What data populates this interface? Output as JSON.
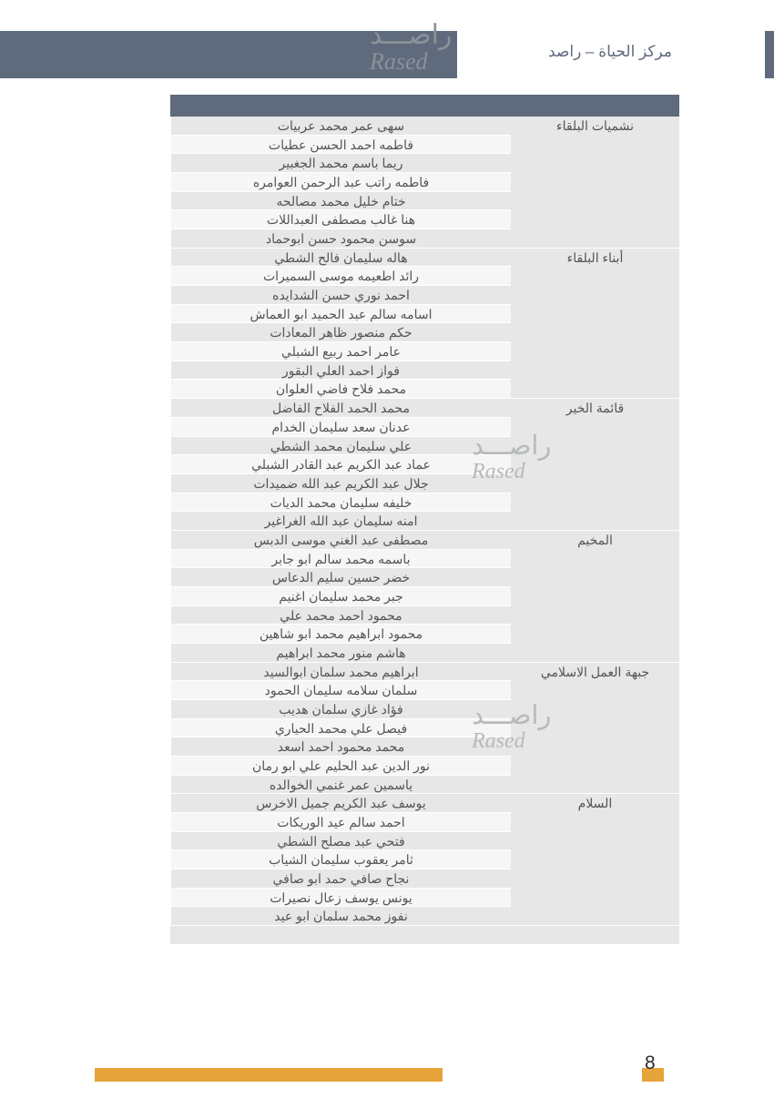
{
  "header": {
    "title": "مركز الحياة – راصد"
  },
  "logo": {
    "ar": "راصـــد",
    "en": "Rased"
  },
  "footer": {
    "page": "8"
  },
  "colors": {
    "header_bar": "#5f6a7d",
    "row_alt": "#e7e7e7",
    "row_norm": "#f6f6f6",
    "accent": "#e6a43a",
    "text": "#555555",
    "logo": "#8b9197",
    "watermark": "#b7babd"
  },
  "groups": [
    {
      "label": "نشميات البلقاء",
      "names": [
        "سهى عمر محمد عربيات",
        "فاطمه احمد الحسن عطيات",
        "ريما باسم محمد الجغبير",
        "فاطمه راتب عبد الرحمن العوامره",
        "ختام خليل محمد مصالحه",
        "هنا غالب مصطفى العبداللات",
        "سوسن محمود حسن ابوحماد"
      ]
    },
    {
      "label": "أبناء البلقاء",
      "names": [
        "هاله سليمان فالح الشطي",
        "رائد اطعيمه موسى السميرات",
        "احمد نوري حسن الشدايده",
        "اسامه سالم عبد الحميد ابو العماش",
        "حكم منصور ظاهر المعادات",
        "عامر احمد ربيع الشبلي",
        "فواز احمد العلي البقور",
        "محمد فلاح فاضي العلوان"
      ]
    },
    {
      "label": "قائمة الخير",
      "names": [
        "محمد الحمد الفلاح الفاضل",
        "عدنان سعد سليمان الخدام",
        "علي سليمان محمد الشطي",
        "عماد عبد الكريم عبد القادر الشبلي",
        "جلال عبد الكريم عبد الله ضميدات",
        "خليفه سليمان محمد الديات",
        "امنه سليمان عبد الله الغراغير"
      ]
    },
    {
      "label": "المخيم",
      "names": [
        "مصطفى عبد الغني موسى الدبس",
        "باسمه محمد سالم ابو جابر",
        "خضر حسين سليم الدعاس",
        "جبر محمد سليمان اغنيم",
        "محمود احمد محمد علي",
        "محمود ابراهيم محمد ابو شاهين",
        "هاشم منور محمد ابراهيم"
      ]
    },
    {
      "label": "جبهة العمل الاسلامي",
      "names": [
        "ابراهيم محمد سلمان ابوالسيد",
        "سلمان سلامه سليمان الحمود",
        "فؤاد غازي سلمان هديب",
        "فيصل علي محمد الحياري",
        "محمد محمود احمد اسعد",
        "نور الدين عبد الحليم علي ابو رمان",
        "ياسمين عمر غنمي الخوالده"
      ]
    },
    {
      "label": "السلام",
      "names": [
        "يوسف عبد الكريم جميل الاخرس",
        "احمد سالم عيد الوريكات",
        "فتحي عبد مصلح الشطي",
        "ثامر يعقوب سليمان الشياب",
        "نجاح صافي حمد ابو صافي",
        "يونس يوسف زعال نصيرات",
        "نفوز محمد سلمان ابو عيد"
      ]
    }
  ]
}
